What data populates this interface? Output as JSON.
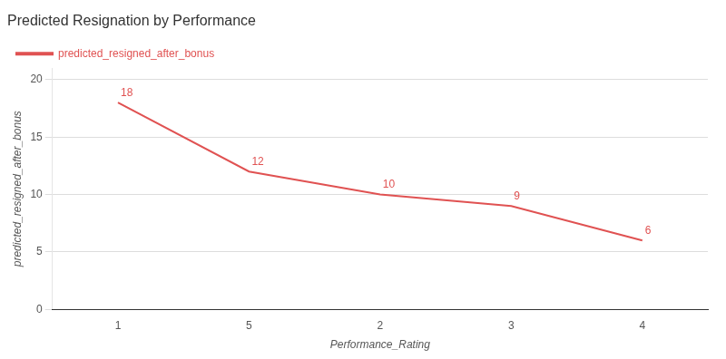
{
  "chart_data": {
    "type": "line",
    "title": "Predicted Resignation by Performance",
    "xlabel": "Performance_Rating",
    "ylabel": "predicted_resigned_after_bonus",
    "categories": [
      "1",
      "5",
      "2",
      "3",
      "4"
    ],
    "series": [
      {
        "name": "predicted_resigned_after_bonus",
        "color": "#e05252",
        "values": [
          18,
          12,
          10,
          9,
          6
        ]
      }
    ],
    "ylim": [
      0,
      21
    ],
    "yticks": [
      0,
      5,
      10,
      15,
      20
    ],
    "grid": true,
    "legend": "upper left",
    "data_labels": true
  }
}
